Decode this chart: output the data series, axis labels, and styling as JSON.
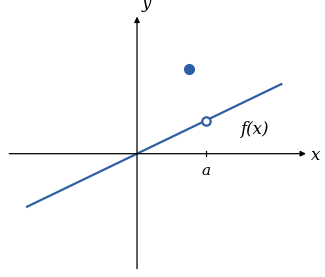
{
  "line_color": "#2E5FA3",
  "point_filled_color": "#2E5FA3",
  "point_open_color": "white",
  "point_open_edge_color": "#2E5FA3",
  "background_color": "#ffffff",
  "a_value": 2.0,
  "slope": 0.45,
  "intercept": 0.0,
  "x_line_start": -3.2,
  "x_line_end": 4.2,
  "filled_dot_x": 1.5,
  "filled_dot_y": 2.3,
  "open_dot_x": 2.0,
  "label_fx": "f(x)",
  "label_a": "a",
  "label_x": "x",
  "label_y": "y",
  "xlim": [
    -3.8,
    5.0
  ],
  "ylim": [
    -3.2,
    3.8
  ],
  "axis_color": "#000000",
  "line_width": 1.6,
  "fontsize_axis_labels": 12,
  "fontsize_a": 11,
  "fontsize_fx": 12
}
